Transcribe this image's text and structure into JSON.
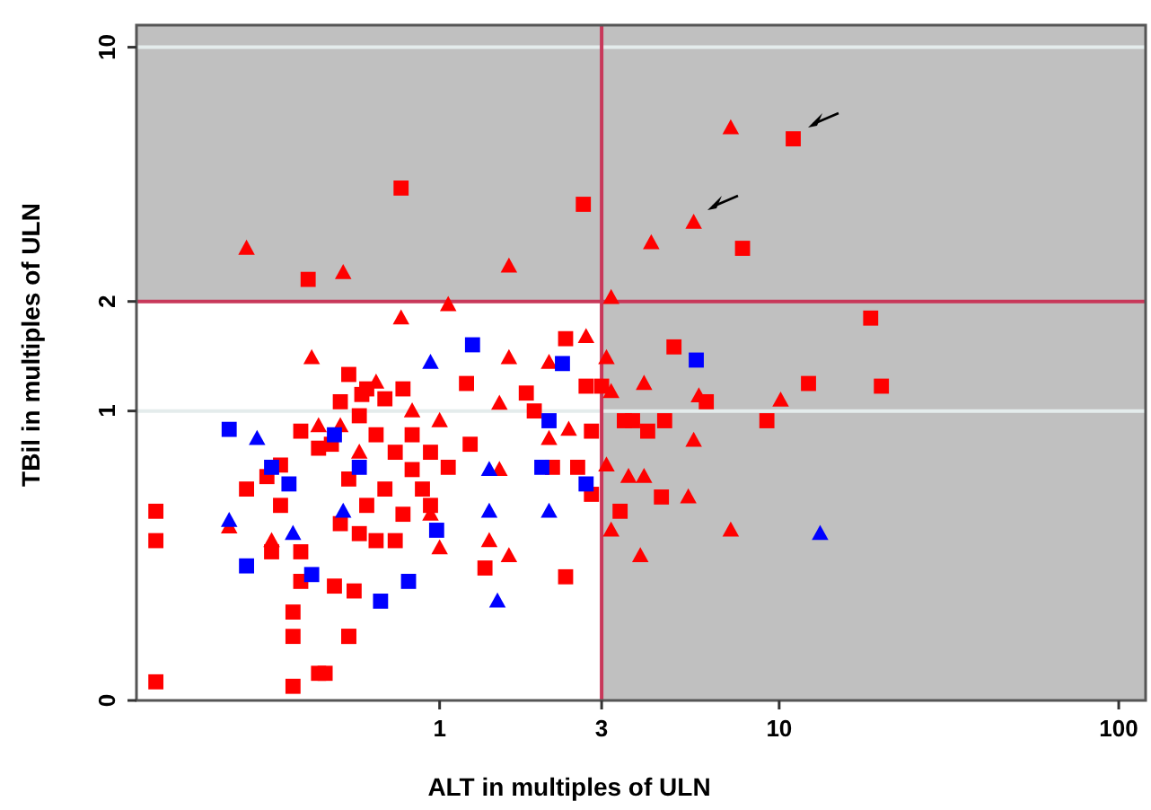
{
  "chart_data": {
    "type": "scatter",
    "xlabel": "ALT in multiples of ULN",
    "ylabel": "TBil in multiples of ULN",
    "log": "xy",
    "xlim": [
      0.128,
      120
    ],
    "ylim": [
      0.16,
      11.5
    ],
    "xticks": [
      1,
      3,
      10,
      100
    ],
    "yticks": [
      {
        "value": 0.16,
        "label": "0"
      },
      1,
      2,
      10
    ],
    "bands": [
      {
        "axis": "x",
        "from": 3,
        "to": 120,
        "color": "#c0c0c0"
      },
      {
        "axis": "y",
        "from": 2,
        "to": 11.5,
        "color": "#c0c0c0"
      }
    ],
    "ref_lines": [
      {
        "axis": "y",
        "value": 10,
        "color": "#e4ecec"
      },
      {
        "axis": "y",
        "value": 1,
        "color": "#e4ecec"
      },
      {
        "axis": "x",
        "value": 3,
        "color": "#c8385a"
      },
      {
        "axis": "y",
        "value": 2,
        "color": "#c8385a"
      }
    ],
    "series": [
      {
        "color": "#ff0000",
        "marker": "square",
        "x": [
          0.77,
          2.65,
          0.41,
          11,
          7.8,
          18.6,
          4.9,
          12.2,
          20,
          9.2,
          4.5,
          3.4,
          6.1,
          2.8,
          3.5,
          3.7,
          4.6,
          4.1,
          2.8,
          2.7,
          3.0,
          2.35,
          1.2,
          1.23,
          1.8,
          1.9,
          2.15,
          2.55,
          1.36,
          2.35,
          1.06,
          0.54,
          0.51,
          0.49,
          0.56,
          0.54,
          0.46,
          0.58,
          0.65,
          0.74,
          0.83,
          0.69,
          0.61,
          0.78,
          0.58,
          0.65,
          0.51,
          0.83,
          0.69,
          0.78,
          0.61,
          0.89,
          0.94,
          0.54,
          0.48,
          0.74,
          0.94,
          0.146,
          0.146,
          0.146,
          0.27,
          0.31,
          0.34,
          0.32,
          0.39,
          0.39,
          0.37,
          0.37,
          0.37,
          0.44,
          0.54,
          0.59,
          0.39,
          0.44,
          0.34
        ],
        "values": [
          4.1,
          3.7,
          2.3,
          5.6,
          2.8,
          1.8,
          1.5,
          1.19,
          1.17,
          0.94,
          0.58,
          0.53,
          1.06,
          0.59,
          0.94,
          0.94,
          0.94,
          0.88,
          0.88,
          1.17,
          1.17,
          1.58,
          1.19,
          0.81,
          1.12,
          1.0,
          0.7,
          0.7,
          0.37,
          0.35,
          0.7,
          1.26,
          1.06,
          0.33,
          0.32,
          0.24,
          0.19,
          0.97,
          0.86,
          0.77,
          0.69,
          0.61,
          0.55,
          0.52,
          0.46,
          0.44,
          0.49,
          0.86,
          1.08,
          1.15,
          1.15,
          0.61,
          0.55,
          0.65,
          0.81,
          0.44,
          0.77,
          0.53,
          0.44,
          0.18,
          0.61,
          0.66,
          0.55,
          0.41,
          0.41,
          0.34,
          0.28,
          0.24,
          0.175,
          0.19,
          0.24,
          1.11,
          0.88,
          0.79,
          0.71
        ]
      },
      {
        "color": "#ff0000",
        "marker": "triangle",
        "x": [
          0.27,
          0.52,
          1.6,
          0.77,
          1.06,
          2.7,
          0.42,
          7.2,
          5.6,
          4.2,
          3.2,
          10.1,
          5.8,
          4.0,
          5.6,
          5.4,
          7.2,
          3.9,
          3.2,
          3.6,
          4.0,
          3.1,
          3.1,
          3.2,
          1.6,
          1.5,
          2.1,
          1.5,
          1.4,
          1.6,
          2.4,
          2.1,
          1.0,
          1.0,
          0.65,
          0.83,
          0.94,
          0.51,
          0.58,
          0.44,
          0.24,
          0.32
        ],
        "values": [
          2.8,
          2.4,
          2.5,
          1.8,
          1.96,
          1.6,
          1.4,
          6.0,
          3.3,
          2.9,
          2.05,
          1.07,
          1.1,
          1.19,
          0.83,
          0.58,
          0.47,
          0.4,
          0.47,
          0.66,
          0.66,
          0.71,
          1.4,
          1.13,
          1.4,
          1.05,
          1.36,
          0.69,
          0.44,
          0.4,
          0.89,
          0.84,
          0.94,
          0.42,
          1.2,
          1.0,
          0.52,
          0.91,
          0.77,
          0.91,
          0.48,
          0.44
        ]
      },
      {
        "color": "#0000ff",
        "marker": "square",
        "x": [
          1.25,
          5.7,
          2.7,
          2.3,
          2.1,
          0.98,
          0.81,
          0.67,
          2.0,
          0.58,
          0.24,
          0.27,
          0.32,
          0.49,
          0.36,
          0.42
        ],
        "values": [
          1.52,
          1.38,
          0.63,
          1.35,
          0.94,
          0.47,
          0.34,
          0.3,
          0.7,
          0.7,
          0.89,
          0.375,
          0.7,
          0.86,
          0.63,
          0.355
        ]
      },
      {
        "color": "#0000ff",
        "marker": "triangle",
        "x": [
          13.2,
          0.94,
          1.4,
          1.48,
          2.1,
          1.4,
          0.29,
          0.24,
          0.37,
          0.52
        ],
        "values": [
          0.46,
          1.36,
          0.53,
          0.3,
          0.53,
          0.69,
          0.84,
          0.5,
          0.46,
          0.53
        ]
      }
    ]
  }
}
